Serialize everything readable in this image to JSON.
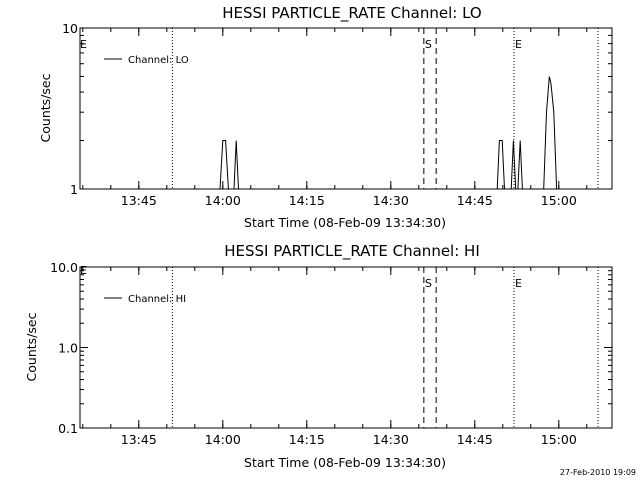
{
  "chart_data": [
    {
      "type": "line",
      "title": "HESSI PARTICLE_RATE Channel: LO",
      "xlabel": "Start Time (08-Feb-09 13:34:30)",
      "ylabel": "Counts/sec",
      "y_scale": "log",
      "x_unit": "minutes since 13:34:30",
      "xlim": [
        0,
        95
      ],
      "ylim": [
        1,
        10
      ],
      "x_ticks": [
        {
          "value": 10.5,
          "label": "13:45"
        },
        {
          "value": 25.5,
          "label": "14:00"
        },
        {
          "value": 40.5,
          "label": "14:15"
        },
        {
          "value": 55.5,
          "label": "14:30"
        },
        {
          "value": 70.5,
          "label": "14:45"
        },
        {
          "value": 85.5,
          "label": "15:00"
        }
      ],
      "y_ticks": [
        {
          "value": 1,
          "label": "1"
        },
        {
          "value": 10,
          "label": "10"
        }
      ],
      "vlines": [
        {
          "x": 16.5,
          "style": "dotted",
          "marker": ""
        },
        {
          "x": 61.4,
          "style": "dashed",
          "marker": "S"
        },
        {
          "x": 63.6,
          "style": "dashed",
          "marker": ""
        },
        {
          "x": 77.5,
          "style": "dotted",
          "marker": "E"
        },
        {
          "x": 92.5,
          "style": "dotted",
          "marker": ""
        }
      ],
      "left_marker": "E",
      "legend": {
        "label": "Channel: LO",
        "position": "top-left"
      },
      "series": [
        {
          "name": "Channel: LO",
          "points": [
            [
              25.0,
              1
            ],
            [
              25.5,
              2
            ],
            [
              26.0,
              2
            ],
            [
              26.5,
              1
            ],
            [
              27.5,
              1
            ],
            [
              27.9,
              2
            ],
            [
              28.3,
              1
            ],
            [
              74.5,
              1
            ],
            [
              74.9,
              2
            ],
            [
              75.4,
              2
            ],
            [
              75.8,
              1
            ],
            [
              77.0,
              1
            ],
            [
              77.4,
              2
            ],
            [
              77.8,
              1
            ],
            [
              78.2,
              1
            ],
            [
              78.6,
              2
            ],
            [
              79.0,
              1
            ],
            [
              82.8,
              1
            ],
            [
              83.3,
              3
            ],
            [
              83.8,
              5
            ],
            [
              84.1,
              4.5
            ],
            [
              84.6,
              3
            ],
            [
              85.1,
              1
            ]
          ]
        }
      ]
    },
    {
      "type": "line",
      "title": "HESSI PARTICLE_RATE Channel: HI",
      "xlabel": "Start Time (08-Feb-09 13:34:30)",
      "ylabel": "Counts/sec",
      "y_scale": "log",
      "x_unit": "minutes since 13:34:30",
      "xlim": [
        0,
        95
      ],
      "ylim": [
        0.1,
        10
      ],
      "x_ticks": [
        {
          "value": 10.5,
          "label": "13:45"
        },
        {
          "value": 25.5,
          "label": "14:00"
        },
        {
          "value": 40.5,
          "label": "14:15"
        },
        {
          "value": 55.5,
          "label": "14:30"
        },
        {
          "value": 70.5,
          "label": "14:45"
        },
        {
          "value": 85.5,
          "label": "15:00"
        }
      ],
      "y_ticks": [
        {
          "value": 0.1,
          "label": "0.1"
        },
        {
          "value": 1,
          "label": "1.0"
        },
        {
          "value": 10,
          "label": "10.0"
        }
      ],
      "vlines": [
        {
          "x": 16.5,
          "style": "dotted",
          "marker": ""
        },
        {
          "x": 61.4,
          "style": "dashed",
          "marker": "S"
        },
        {
          "x": 63.6,
          "style": "dashed",
          "marker": ""
        },
        {
          "x": 77.5,
          "style": "dotted",
          "marker": "E"
        },
        {
          "x": 92.5,
          "style": "dotted",
          "marker": ""
        }
      ],
      "left_marker": "E",
      "legend": {
        "label": "Channel: HI",
        "position": "top-left"
      },
      "series": [
        {
          "name": "Channel: HI",
          "points": []
        }
      ]
    }
  ],
  "timestamp": "27-Feb-2010 19:09"
}
